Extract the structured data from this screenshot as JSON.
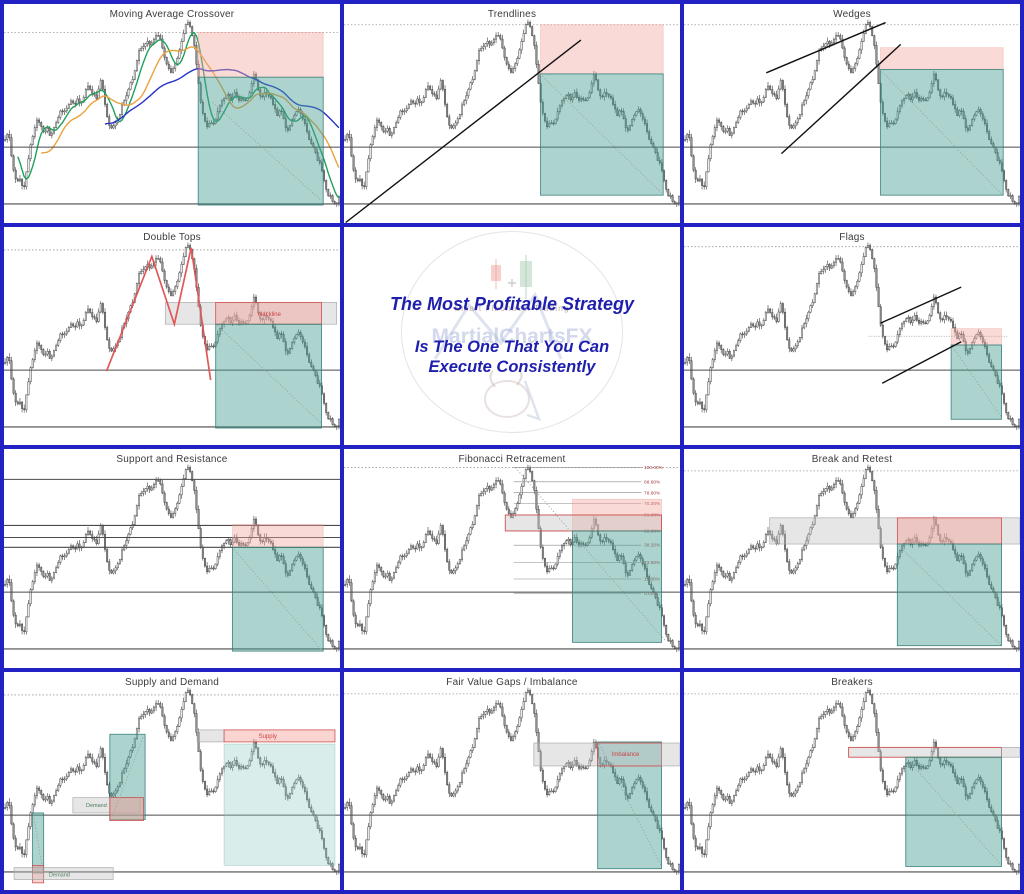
{
  "center_panel": {
    "line1": "The Most Profitable Strategy",
    "line2": "Is The One That You Can",
    "line3": "Execute Consistently",
    "watermark_line1": "Smart Fibonacci Trading",
    "watermark_line2": "MartialChartsFX"
  },
  "colors": {
    "frame_blue": "#2222c4",
    "panel_bg": "#ffffff",
    "title_text": "#3c3c3c",
    "candle_stroke": "#3f3f3f",
    "candle_up": "#fdfdfd",
    "candle_down": "#999999",
    "teal_fill": "rgba(74,158,148,0.45)",
    "teal_stroke": "rgba(47,125,116,0.85)",
    "teal_light_fill": "rgba(140,202,194,0.33)",
    "teal_light_stroke": "rgba(120,180,172,0.5)",
    "pink_fill": "rgba(243,166,157,0.42)",
    "pink_stroke": "rgba(235,150,140,0.45)",
    "red_zone_fill": "rgba(242,160,150,0.45)",
    "red_stroke": "#cc5050",
    "gray_fill": "rgba(190,190,190,0.38)",
    "gray_stroke": "rgba(160,160,160,0.85)",
    "hline": "#4a4a4a",
    "dotted": "#9a9a9a",
    "annotation_line": "#111111",
    "zigzag": "#e05858",
    "ma_fast": "#1fa05a",
    "ma_mid": "#eaa23e",
    "ma_slow": "#2733c8",
    "label_red": "#cc4444",
    "label_green": "#4a7c59",
    "fib_label": "#a04040",
    "center_text": "#1f1fae"
  },
  "chart_data": {
    "type": "candlestick-grid",
    "description": "Same intraday price series repeated in 11 panels, each annotated with a different trading strategy; entry shown as pink (risk) and teal (reward) zones on the right-side downtrend.",
    "series": {
      "count": 158,
      "mid_line_y": 0.655,
      "bottom_line_y": 0.915,
      "path": [
        [
          0.0,
          0.62
        ],
        [
          0.01,
          0.55
        ],
        [
          0.022,
          0.8
        ],
        [
          0.035,
          0.85
        ],
        [
          0.045,
          0.78
        ],
        [
          0.055,
          0.87
        ],
        [
          0.065,
          0.7
        ],
        [
          0.075,
          0.62
        ],
        [
          0.085,
          0.55
        ],
        [
          0.095,
          0.52
        ],
        [
          0.105,
          0.57
        ],
        [
          0.115,
          0.6
        ],
        [
          0.125,
          0.55
        ],
        [
          0.135,
          0.62
        ],
        [
          0.145,
          0.58
        ],
        [
          0.155,
          0.52
        ],
        [
          0.165,
          0.47
        ],
        [
          0.175,
          0.5
        ],
        [
          0.185,
          0.46
        ],
        [
          0.195,
          0.42
        ],
        [
          0.205,
          0.47
        ],
        [
          0.215,
          0.43
        ],
        [
          0.225,
          0.47
        ],
        [
          0.235,
          0.42
        ],
        [
          0.245,
          0.36
        ],
        [
          0.255,
          0.42
        ],
        [
          0.265,
          0.4
        ],
        [
          0.275,
          0.45
        ],
        [
          0.285,
          0.3
        ],
        [
          0.295,
          0.45
        ],
        [
          0.305,
          0.56
        ],
        [
          0.315,
          0.6
        ],
        [
          0.325,
          0.55
        ],
        [
          0.335,
          0.52
        ],
        [
          0.345,
          0.48
        ],
        [
          0.355,
          0.43
        ],
        [
          0.365,
          0.4
        ],
        [
          0.375,
          0.35
        ],
        [
          0.385,
          0.32
        ],
        [
          0.395,
          0.22
        ],
        [
          0.405,
          0.18
        ],
        [
          0.415,
          0.2
        ],
        [
          0.425,
          0.16
        ],
        [
          0.435,
          0.22
        ],
        [
          0.445,
          0.15
        ],
        [
          0.455,
          0.13
        ],
        [
          0.465,
          0.18
        ],
        [
          0.475,
          0.25
        ],
        [
          0.485,
          0.3
        ],
        [
          0.495,
          0.33
        ],
        [
          0.505,
          0.28
        ],
        [
          0.515,
          0.22
        ],
        [
          0.525,
          0.18
        ],
        [
          0.535,
          0.1
        ],
        [
          0.545,
          0.06
        ],
        [
          0.555,
          0.13
        ],
        [
          0.565,
          0.2
        ],
        [
          0.575,
          0.35
        ],
        [
          0.585,
          0.48
        ],
        [
          0.595,
          0.55
        ],
        [
          0.605,
          0.58
        ],
        [
          0.615,
          0.52
        ],
        [
          0.625,
          0.55
        ],
        [
          0.635,
          0.48
        ],
        [
          0.645,
          0.45
        ],
        [
          0.655,
          0.42
        ],
        [
          0.665,
          0.4
        ],
        [
          0.675,
          0.44
        ],
        [
          0.685,
          0.38
        ],
        [
          0.695,
          0.45
        ],
        [
          0.705,
          0.42
        ],
        [
          0.715,
          0.46
        ],
        [
          0.725,
          0.42
        ],
        [
          0.735,
          0.38
        ],
        [
          0.745,
          0.3
        ],
        [
          0.755,
          0.42
        ],
        [
          0.765,
          0.45
        ],
        [
          0.775,
          0.4
        ],
        [
          0.785,
          0.43
        ],
        [
          0.795,
          0.42
        ],
        [
          0.805,
          0.5
        ],
        [
          0.815,
          0.52
        ],
        [
          0.825,
          0.48
        ],
        [
          0.835,
          0.55
        ],
        [
          0.845,
          0.6
        ],
        [
          0.855,
          0.55
        ],
        [
          0.865,
          0.5
        ],
        [
          0.875,
          0.47
        ],
        [
          0.885,
          0.52
        ],
        [
          0.895,
          0.55
        ],
        [
          0.905,
          0.6
        ],
        [
          0.915,
          0.65
        ],
        [
          0.925,
          0.68
        ],
        [
          0.935,
          0.72
        ],
        [
          0.945,
          0.75
        ],
        [
          0.955,
          0.82
        ],
        [
          0.965,
          0.92
        ],
        [
          0.975,
          0.88
        ],
        [
          0.985,
          0.94
        ],
        [
          1.0,
          0.85
        ]
      ]
    },
    "panels": [
      {
        "type": "candles",
        "title": "Moving Average Crossover",
        "top_dotted": 0.13,
        "mas": true,
        "boxes": [
          {
            "t": "pink",
            "x": 0.578,
            "y": 0.13,
            "w": 0.372,
            "h": 0.205
          },
          {
            "t": "teal",
            "x": 0.578,
            "y": 0.335,
            "w": 0.372,
            "h": 0.585
          }
        ],
        "dashes": [
          {
            "x1": 0.62,
            "y1": 0.45,
            "x2": 0.945,
            "y2": 0.9
          }
        ]
      },
      {
        "type": "candles",
        "title": "Trendlines",
        "top_dotted": 0.095,
        "boxes": [
          {
            "t": "pink",
            "x": 0.585,
            "y": 0.095,
            "w": 0.365,
            "h": 0.225
          },
          {
            "t": "teal",
            "x": 0.585,
            "y": 0.32,
            "w": 0.365,
            "h": 0.555
          }
        ],
        "lines": [
          {
            "x1": 0.005,
            "y1": 1.0,
            "x2": 0.705,
            "y2": 0.165
          }
        ],
        "dashes": [
          {
            "x1": 0.59,
            "y1": 0.33,
            "x2": 0.945,
            "y2": 0.865
          }
        ]
      },
      {
        "type": "candles",
        "title": "Wedges",
        "top_dotted": 0.095,
        "boxes": [
          {
            "t": "pink",
            "x": 0.585,
            "y": 0.2,
            "w": 0.365,
            "h": 0.1
          },
          {
            "t": "teal",
            "x": 0.585,
            "y": 0.3,
            "w": 0.365,
            "h": 0.575
          }
        ],
        "lines": [
          {
            "x1": 0.245,
            "y1": 0.315,
            "x2": 0.6,
            "y2": 0.085
          },
          {
            "x1": 0.29,
            "y1": 0.685,
            "x2": 0.645,
            "y2": 0.185
          }
        ],
        "dashes": [
          {
            "x1": 0.59,
            "y1": 0.31,
            "x2": 0.945,
            "y2": 0.87
          }
        ]
      },
      {
        "type": "candles",
        "title": "Double Tops",
        "top_dotted": 0.105,
        "boxes": [
          {
            "t": "gray",
            "x": 0.48,
            "y": 0.345,
            "w": 0.51,
            "h": 0.1
          },
          {
            "t": "red",
            "x": 0.63,
            "y": 0.345,
            "w": 0.315,
            "h": 0.1
          },
          {
            "t": "teal",
            "x": 0.63,
            "y": 0.445,
            "w": 0.315,
            "h": 0.475
          }
        ],
        "zigzag": [
          [
            0.305,
            0.66
          ],
          [
            0.44,
            0.135
          ],
          [
            0.507,
            0.445
          ],
          [
            0.557,
            0.095
          ],
          [
            0.615,
            0.7
          ]
        ],
        "dashes": [
          {
            "x1": 0.635,
            "y1": 0.45,
            "x2": 0.945,
            "y2": 0.9
          }
        ],
        "labels": [
          {
            "x": 0.79,
            "y": 0.408,
            "text": "Neckline",
            "color": "red",
            "size": 6
          }
        ]
      },
      {
        "type": "text",
        "title": ""
      },
      {
        "type": "candles",
        "title": "Flags",
        "top_dotted": 0.09,
        "boxes": [
          {
            "t": "pink",
            "x": 0.795,
            "y": 0.465,
            "w": 0.15,
            "h": 0.075
          },
          {
            "t": "teal",
            "x": 0.795,
            "y": 0.54,
            "w": 0.15,
            "h": 0.34
          }
        ],
        "lines": [
          {
            "x1": 0.585,
            "y1": 0.44,
            "x2": 0.825,
            "y2": 0.275
          },
          {
            "x1": 0.59,
            "y1": 0.715,
            "x2": 0.825,
            "y2": 0.525
          }
        ],
        "dotted_h": [
          {
            "y": 0.5,
            "x1": 0.55,
            "x2": 0.965
          }
        ],
        "dashes": [
          {
            "x1": 0.8,
            "y1": 0.55,
            "x2": 0.945,
            "y2": 0.87
          }
        ]
      },
      {
        "type": "candles",
        "title": "Support and Resistance",
        "hlines": [
          0.139,
          0.35,
          0.405,
          0.45
        ],
        "boxes": [
          {
            "t": "pink",
            "x": 0.68,
            "y": 0.345,
            "w": 0.27,
            "h": 0.105
          },
          {
            "t": "teal",
            "x": 0.68,
            "y": 0.45,
            "w": 0.27,
            "h": 0.475
          }
        ],
        "dashes": [
          {
            "x1": 0.685,
            "y1": 0.46,
            "x2": 0.945,
            "y2": 0.92
          }
        ]
      },
      {
        "type": "candles",
        "title": "Fibonacci Retracement",
        "top_dotted": 0.085,
        "fib": {
          "x1": 0.505,
          "x2": 0.885,
          "label_x": 0.893,
          "levels": [
            {
              "y": 0.085,
              "label": "100.00%"
            },
            {
              "y": 0.15,
              "label": "88.60%"
            },
            {
              "y": 0.2,
              "label": "78.60%"
            },
            {
              "y": 0.25,
              "label": "70.20%"
            },
            {
              "y": 0.302,
              "label": "61.80%"
            },
            {
              "y": 0.375,
              "label": "50.00%"
            },
            {
              "y": 0.44,
              "label": "38.20%"
            },
            {
              "y": 0.52,
              "label": "23.60%"
            },
            {
              "y": 0.595,
              "label": "11.80%"
            },
            {
              "y": 0.66,
              "label": "0.00%"
            }
          ]
        },
        "boxes": [
          {
            "t": "pink",
            "x": 0.68,
            "y": 0.23,
            "w": 0.265,
            "h": 0.145
          },
          {
            "t": "grayred",
            "x": 0.48,
            "y": 0.302,
            "w": 0.465,
            "h": 0.073
          },
          {
            "t": "teal",
            "x": 0.68,
            "y": 0.375,
            "w": 0.265,
            "h": 0.51
          }
        ],
        "dashes": [
          {
            "x1": 0.51,
            "y1": 0.085,
            "x2": 0.955,
            "y2": 0.875
          }
        ]
      },
      {
        "type": "candles",
        "title": "Break and Retest",
        "top_dotted": 0.1,
        "boxes": [
          {
            "t": "gray",
            "x": 0.255,
            "y": 0.315,
            "w": 0.745,
            "h": 0.12
          },
          {
            "t": "red",
            "x": 0.635,
            "y": 0.315,
            "w": 0.31,
            "h": 0.12
          },
          {
            "t": "teal",
            "x": 0.635,
            "y": 0.435,
            "w": 0.31,
            "h": 0.465
          }
        ],
        "dashes": [
          {
            "x1": 0.64,
            "y1": 0.445,
            "x2": 0.945,
            "y2": 0.9
          }
        ]
      },
      {
        "type": "candles",
        "title": "Supply and Demand",
        "top_dotted": 0.105,
        "boxes": [
          {
            "t": "teal",
            "x": 0.085,
            "y": 0.645,
            "w": 0.033,
            "h": 0.275
          },
          {
            "t": "red",
            "x": 0.085,
            "y": 0.885,
            "w": 0.033,
            "h": 0.08
          },
          {
            "t": "gray",
            "x": 0.03,
            "y": 0.895,
            "w": 0.295,
            "h": 0.055
          },
          {
            "t": "teal",
            "x": 0.315,
            "y": 0.285,
            "w": 0.105,
            "h": 0.39
          },
          {
            "t": "gray",
            "x": 0.205,
            "y": 0.575,
            "w": 0.2,
            "h": 0.07
          },
          {
            "t": "red",
            "x": 0.315,
            "y": 0.575,
            "w": 0.1,
            "h": 0.105
          },
          {
            "t": "gray",
            "x": 0.575,
            "y": 0.265,
            "w": 0.08,
            "h": 0.055
          },
          {
            "t": "red",
            "x": 0.655,
            "y": 0.265,
            "w": 0.33,
            "h": 0.055
          },
          {
            "t": "teal_light",
            "x": 0.655,
            "y": 0.33,
            "w": 0.33,
            "h": 0.555
          }
        ],
        "dashes": [
          {
            "x1": 0.322,
            "y1": 0.66,
            "x2": 0.415,
            "y2": 0.295
          },
          {
            "x1": 0.088,
            "y1": 0.655,
            "x2": 0.116,
            "y2": 0.915
          }
        ],
        "labels": [
          {
            "x": 0.785,
            "y": 0.301,
            "text": "Supply",
            "color": "red",
            "size": 6
          },
          {
            "x": 0.275,
            "y": 0.618,
            "text": "Demand",
            "color": "green",
            "size": 5.5
          },
          {
            "x": 0.165,
            "y": 0.937,
            "text": "Demand",
            "color": "green",
            "size": 5.5
          }
        ]
      },
      {
        "type": "candles",
        "title": "Fair Value Gaps / Imbalance",
        "top_dotted": 0.1,
        "boxes": [
          {
            "t": "teal",
            "x": 0.755,
            "y": 0.32,
            "w": 0.19,
            "h": 0.58
          },
          {
            "t": "gray",
            "x": 0.565,
            "y": 0.325,
            "w": 0.19,
            "h": 0.105
          },
          {
            "t": "grayred",
            "x": 0.755,
            "y": 0.325,
            "w": 0.19,
            "h": 0.105
          },
          {
            "t": "gray",
            "x": 0.945,
            "y": 0.325,
            "w": 0.055,
            "h": 0.105
          }
        ],
        "dashes": [
          {
            "x1": 0.76,
            "y1": 0.33,
            "x2": 0.945,
            "y2": 0.89
          }
        ],
        "labels": [
          {
            "x": 0.838,
            "y": 0.385,
            "text": "Imbalance",
            "color": "red",
            "size": 6
          }
        ]
      },
      {
        "type": "candles",
        "title": "Breakers",
        "top_dotted": 0.1,
        "boxes": [
          {
            "t": "grayred",
            "x": 0.49,
            "y": 0.345,
            "w": 0.455,
            "h": 0.045
          },
          {
            "t": "gray",
            "x": 0.945,
            "y": 0.345,
            "w": 0.055,
            "h": 0.045
          },
          {
            "t": "teal",
            "x": 0.66,
            "y": 0.39,
            "w": 0.285,
            "h": 0.5
          }
        ],
        "dashes": [
          {
            "x1": 0.665,
            "y1": 0.4,
            "x2": 0.945,
            "y2": 0.885
          }
        ]
      }
    ]
  }
}
